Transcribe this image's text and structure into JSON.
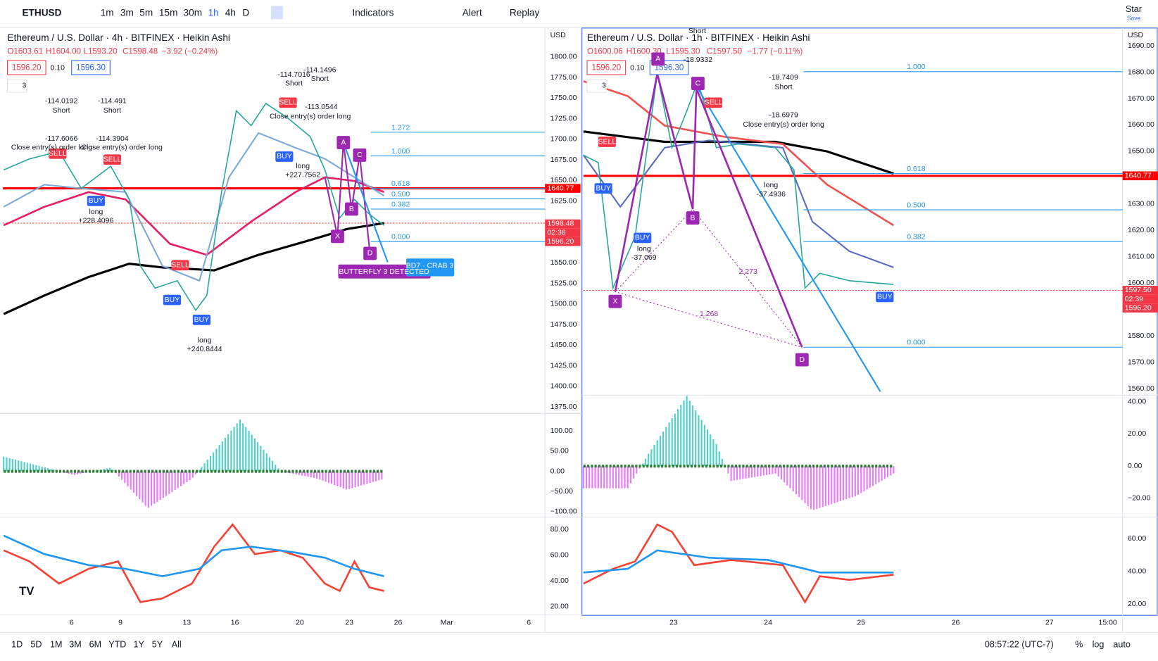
{
  "toolbar": {
    "symbol": "ETHUSD",
    "intervals": [
      "1m",
      "3m",
      "5m",
      "15m",
      "30m",
      "1h",
      "4h",
      "D"
    ],
    "indicators": "Indicators",
    "alert": "Alert",
    "replay": "Replay",
    "star": "Star",
    "save": "Save"
  },
  "left_chart": {
    "header": "Ethereum / U.S. Dollar · 4h · BITFINEX · Heikin Ashi",
    "ohlc": [
      "O1603.61",
      "H1604.00",
      "L1593.20",
      "C1598.48",
      "−3.92 (−0.24%)"
    ],
    "bid": "1596.20",
    "spread": "0.10",
    "ask": "1596.30",
    "indicator_count": "3",
    "currency": "USD",
    "price_axis": [
      "1800.00",
      "1775.00",
      "1750.00",
      "1725.00",
      "1700.00",
      "1675.00",
      "1650.00",
      "1625.00",
      "1550.00",
      "1525.00",
      "1500.00",
      "1475.00",
      "1450.00",
      "1425.00",
      "1400.00",
      "1375.00"
    ],
    "macd_axis": [
      "100.00",
      "50.00",
      "0.00",
      "−50.00",
      "−100.00"
    ],
    "rsi_axis": [
      "80.00",
      "60.00",
      "40.00",
      "20.00"
    ],
    "time_axis": [
      "6",
      "9",
      "13",
      "16",
      "20",
      "23",
      "26",
      "Mar",
      "6"
    ],
    "price_tags": [
      "1640.77",
      "1598.48",
      "02:38",
      "1596.20"
    ],
    "fib_levels": [
      "1.272",
      "1.000",
      "0.618",
      "0.500",
      "0.382",
      "0.000"
    ],
    "pattern_points": [
      "X",
      "A",
      "B",
      "C",
      "D"
    ],
    "pattern_label": "BUTTERFLY 3 DETECTED",
    "pattern_label_2": "BD7 · CRAB 3",
    "signals": [
      "SELL",
      "SELL",
      "BUY",
      "SELL",
      "BUY",
      "BUY",
      "SELL",
      "BUY"
    ],
    "annotations": [
      "-114.0192",
      "Short",
      "-117.6066",
      "Close entry(s) order long",
      "-114.491",
      "Short",
      "-114.3904",
      "Close entry(s) order long",
      "long",
      "+228.4096",
      "long",
      "+240.8444",
      "-114.7016",
      "Short",
      "-114.1496",
      "Short",
      "-113.0544",
      "Close entry(s) order long",
      "long",
      "+227.7562"
    ]
  },
  "right_chart": {
    "header": "Ethereum / U.S. Dollar · 1h · BITFINEX · Heikin Ashi",
    "ohlc": [
      "O1600.06",
      "H1600.30",
      "L1595.30",
      "C1597.50",
      "−1.77 (−0.11%)"
    ],
    "bid": "1596.20",
    "spread": "0.10",
    "ask": "1596.30",
    "indicator_count": "3",
    "currency": "USD",
    "price_axis": [
      "1690.00",
      "1680.00",
      "1670.00",
      "1660.00",
      "1650.00",
      "1630.00",
      "1620.00",
      "1610.00",
      "1600.00",
      "1580.00",
      "1570.00",
      "1560.00"
    ],
    "macd_axis": [
      "40.00",
      "20.00",
      "0.00",
      "−20.00"
    ],
    "rsi_axis": [
      "60.00",
      "40.00",
      "20.00"
    ],
    "time_axis": [
      "23",
      "24",
      "25",
      "26",
      "27",
      "15:00"
    ],
    "price_tags": [
      "1640.77",
      "1597.50",
      "02:39",
      "1596.20"
    ],
    "fib_levels": [
      "1.000",
      "0.618",
      "0.500",
      "0.382",
      "0.000"
    ],
    "pattern_points": [
      "X",
      "A",
      "B",
      "C",
      "D"
    ],
    "pattern_ratios": [
      "2.273",
      "1.268"
    ],
    "signals": [
      "SELL",
      "SELL",
      "BUY",
      "BUY",
      "BUY"
    ],
    "annotations": [
      "Short",
      "-18.9332",
      "-18.7409",
      "Short",
      "-18.6979",
      "Close entry(s) order long",
      "long",
      "-37.4936",
      "long",
      "-37.069"
    ]
  },
  "bottom_bar": {
    "ranges": [
      "1D",
      "5D",
      "1M",
      "3M",
      "6M",
      "YTD",
      "1Y",
      "5Y",
      "All"
    ],
    "clock": "08:57:22 (UTC-7)",
    "percent": "%",
    "log": "log",
    "auto": "auto"
  }
}
